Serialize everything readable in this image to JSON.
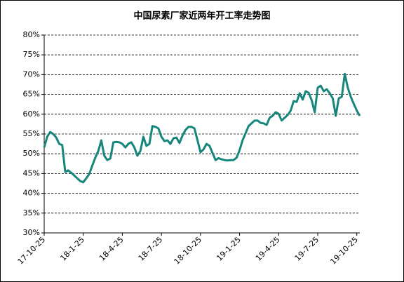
{
  "chart_data": {
    "type": "line",
    "title": "中国尿素厂家近两年开工率走势图",
    "categories": [
      "17-10-25",
      null,
      null,
      null,
      null,
      null,
      null,
      null,
      null,
      null,
      null,
      null,
      null,
      "18-1-25",
      null,
      null,
      null,
      null,
      null,
      null,
      null,
      null,
      null,
      null,
      null,
      null,
      "18-4-25",
      null,
      null,
      null,
      null,
      null,
      null,
      null,
      null,
      null,
      null,
      null,
      null,
      "18-7-25",
      null,
      null,
      null,
      null,
      null,
      null,
      null,
      null,
      null,
      null,
      null,
      null,
      "18-10-25",
      null,
      null,
      null,
      null,
      null,
      null,
      null,
      null,
      null,
      null,
      null,
      null,
      "19-1-25",
      null,
      null,
      null,
      null,
      null,
      null,
      null,
      null,
      null,
      null,
      null,
      null,
      "19-4-25",
      null,
      null,
      null,
      null,
      null,
      null,
      null,
      null,
      null,
      null,
      null,
      null,
      "19-7-25",
      null,
      null,
      null,
      null,
      null,
      null,
      null,
      null,
      null,
      null,
      null,
      null,
      "19-10-25",
      null
    ],
    "series": [
      {
        "name": "开工率",
        "color": "#16867c",
        "values": [
          51.6,
          54.3,
          55.5,
          55,
          54.1,
          52.5,
          52.2,
          45.4,
          45.8,
          45.2,
          44.5,
          43.8,
          43.1,
          42.8,
          43.8,
          44.9,
          47,
          49,
          50.7,
          53.4,
          49.5,
          48.4,
          48.8,
          52.9,
          53,
          52.9,
          52.5,
          51.6,
          52.5,
          52.9,
          51.6,
          49.5,
          50.7,
          54.3,
          52,
          52.5,
          57,
          56.8,
          56.4,
          54.3,
          53.2,
          53.4,
          52.5,
          53.9,
          54.1,
          52.7,
          54.6,
          56,
          56.8,
          56.8,
          56.4,
          53.4,
          50.4,
          51.1,
          52.5,
          52,
          50.2,
          48.4,
          48.9,
          48.6,
          48.4,
          48.3,
          48.4,
          48.4,
          49,
          50.9,
          53.4,
          55.2,
          57,
          57.7,
          58.4,
          58.4,
          57.8,
          57.7,
          57.3,
          59.1,
          59.6,
          60.5,
          60.1,
          58.4,
          59.1,
          59.8,
          60.9,
          63.3,
          63.1,
          65.3,
          63.7,
          65.8,
          65.4,
          63.5,
          60.5,
          66.7,
          67.2,
          65.8,
          66.3,
          65.3,
          64,
          59.6,
          64,
          64.4,
          70.2,
          66.7,
          64.4,
          62.6,
          60.9,
          59.6
        ]
      }
    ],
    "ylim": [
      30,
      80
    ],
    "yticks": [
      {
        "value": 30,
        "label": "30%"
      },
      {
        "value": 35,
        "label": "35%"
      },
      {
        "value": 40,
        "label": "40%"
      },
      {
        "value": 45,
        "label": "45%"
      },
      {
        "value": 50,
        "label": "50%"
      },
      {
        "value": 55,
        "label": "55%"
      },
      {
        "value": 60,
        "label": "60%"
      },
      {
        "value": 65,
        "label": "65%"
      },
      {
        "value": 70,
        "label": "70%"
      },
      {
        "value": 75,
        "label": "75%"
      },
      {
        "value": 80,
        "label": "80%"
      }
    ],
    "grid": true
  }
}
